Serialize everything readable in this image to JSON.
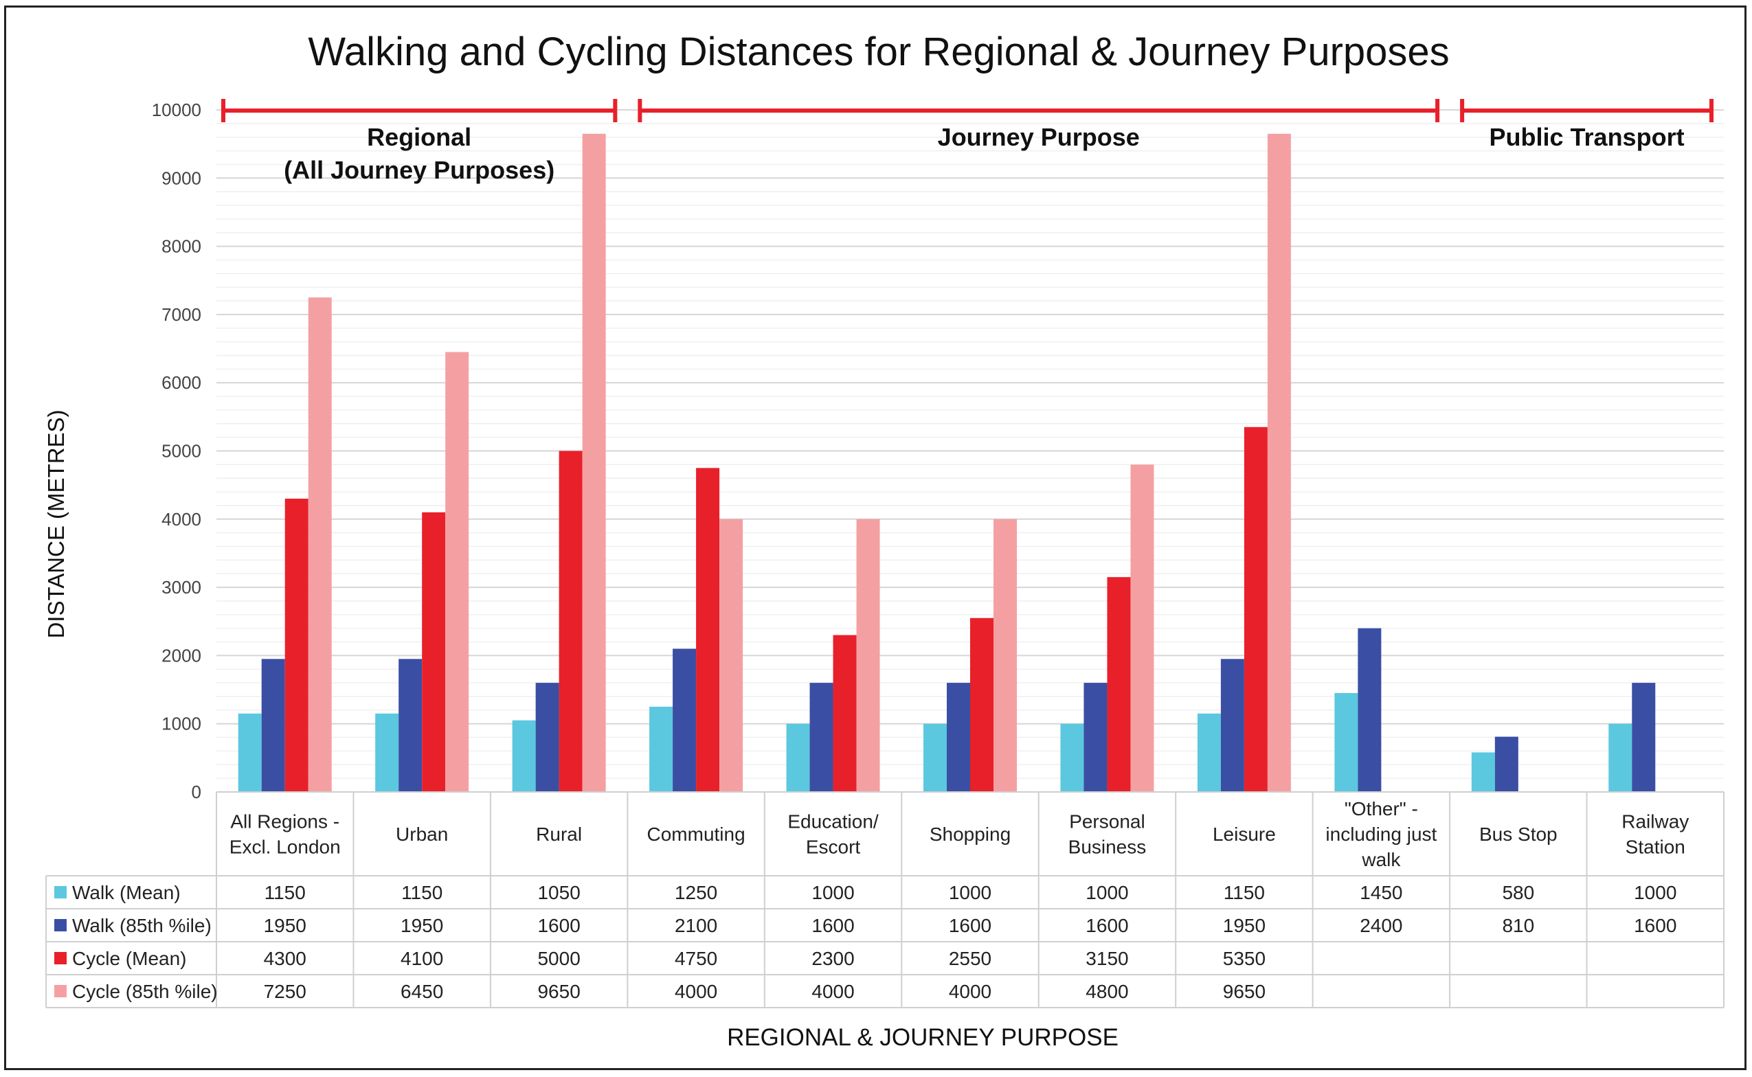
{
  "chart_data": {
    "type": "bar",
    "title": "Walking and Cycling Distances for Regional & Journey Purposes",
    "xlabel": "REGIONAL & JOURNEY PURPOSE",
    "ylabel": "DISTANCE (METRES)",
    "ylim": [
      0,
      10000
    ],
    "yticks": [
      0,
      1000,
      2000,
      3000,
      4000,
      5000,
      6000,
      7000,
      8000,
      9000,
      10000
    ],
    "grid": true,
    "legend_placement": "data-table",
    "categories": [
      [
        "All Regions -",
        "Excl. London"
      ],
      [
        "Urban"
      ],
      [
        "Rural"
      ],
      [
        "Commuting"
      ],
      [
        "Education/",
        "Escort"
      ],
      [
        "Shopping"
      ],
      [
        "Personal",
        "Business"
      ],
      [
        "Leisure"
      ],
      [
        "\"Other\" -",
        "including just",
        "walk"
      ],
      [
        "Bus Stop"
      ],
      [
        "Railway",
        "Station"
      ]
    ],
    "series": [
      {
        "name": "Walk (Mean)",
        "color": "#5BC8E0",
        "values": [
          1150,
          1150,
          1050,
          1250,
          1000,
          1000,
          1000,
          1150,
          1450,
          580,
          1000
        ]
      },
      {
        "name": "Walk (85th %ile)",
        "color": "#3A4FA3",
        "values": [
          1950,
          1950,
          1600,
          2100,
          1600,
          1600,
          1600,
          1950,
          2400,
          810,
          1600
        ]
      },
      {
        "name": "Cycle (Mean)",
        "color": "#E8202A",
        "values": [
          4300,
          4100,
          5000,
          4750,
          2300,
          2550,
          3150,
          5350,
          null,
          null,
          null
        ]
      },
      {
        "name": "Cycle (85th %ile)",
        "color": "#F4A0A3",
        "values": [
          7250,
          6450,
          9650,
          4000,
          4000,
          4000,
          4800,
          9650,
          null,
          null,
          null
        ]
      }
    ],
    "annotations": [
      {
        "label_lines": [
          "Regional",
          "(All Journey Purposes)"
        ],
        "from_category": 0,
        "to_category": 2
      },
      {
        "label_lines": [
          "Journey Purpose"
        ],
        "from_category": 3,
        "to_category": 8
      },
      {
        "label_lines": [
          "Public Transport"
        ],
        "from_category": 9,
        "to_category": 10
      }
    ],
    "bracket_color": "#E8202A"
  }
}
